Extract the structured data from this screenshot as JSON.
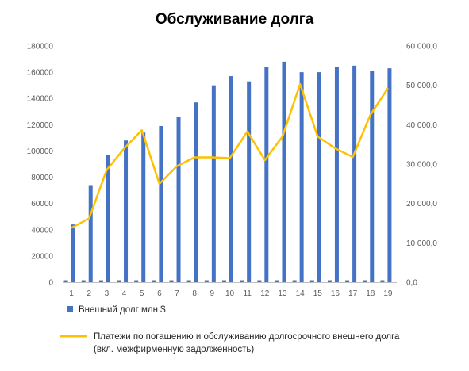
{
  "chart_data": {
    "type": "bar",
    "title": "Обслуживание долга",
    "categories": [
      "1",
      "2",
      "3",
      "4",
      "5",
      "6",
      "7",
      "8",
      "9",
      "10",
      "11",
      "12",
      "13",
      "14",
      "15",
      "16",
      "17",
      "18",
      "19"
    ],
    "y_left_ticks": [
      "0",
      "20000",
      "40000",
      "60000",
      "80000",
      "100000",
      "120000",
      "140000",
      "160000",
      "180000"
    ],
    "y_right_ticks": [
      "0,0",
      "10 000,0",
      "20 000,0",
      "30 000,0",
      "40 000,0",
      "50 000,0",
      "60 000,0"
    ],
    "ylim_left": [
      0,
      180000
    ],
    "ylim_right": [
      0,
      60000
    ],
    "grid": false,
    "legend_position": "bottom",
    "series": [
      {
        "name": "Внешний долг млн $",
        "type": "bar",
        "axis": "left",
        "color": "#4472C4",
        "values": [
          44000,
          74000,
          97000,
          108000,
          114000,
          119000,
          126000,
          137000,
          150000,
          157000,
          153000,
          164000,
          168000,
          160000,
          160000,
          164000,
          165000,
          161000,
          163000
        ]
      },
      {
        "name": "",
        "type": "bar",
        "axis": "left",
        "color": "#4472C4",
        "values": [
          1500,
          1500,
          1500,
          1500,
          1500,
          1500,
          1500,
          1500,
          1500,
          1500,
          1500,
          1500,
          1500,
          1500,
          1500,
          1500,
          1500,
          1500,
          1500
        ]
      },
      {
        "name": "Платежи по погашению и обслуживанию долгосрочного внешнего долга (вкл. межфирменную задолженность)",
        "type": "line",
        "axis": "right",
        "color": "#FFC000",
        "values": [
          13800,
          16200,
          28500,
          34000,
          38600,
          25000,
          29500,
          31700,
          31700,
          31500,
          38300,
          31000,
          37000,
          50300,
          37000,
          34000,
          31800,
          42500,
          49300
        ]
      }
    ]
  },
  "legend": {
    "bar_label": "Внешний долг млн $",
    "line_label_1": "Платежи по погашению и обслуживанию долгосрочного внешнего долга",
    "line_label_2": "(вкл. межфирменную задолженность)"
  },
  "colors": {
    "bar": "#4472C4",
    "line": "#FFC000",
    "axis": "#BFBFBF"
  }
}
